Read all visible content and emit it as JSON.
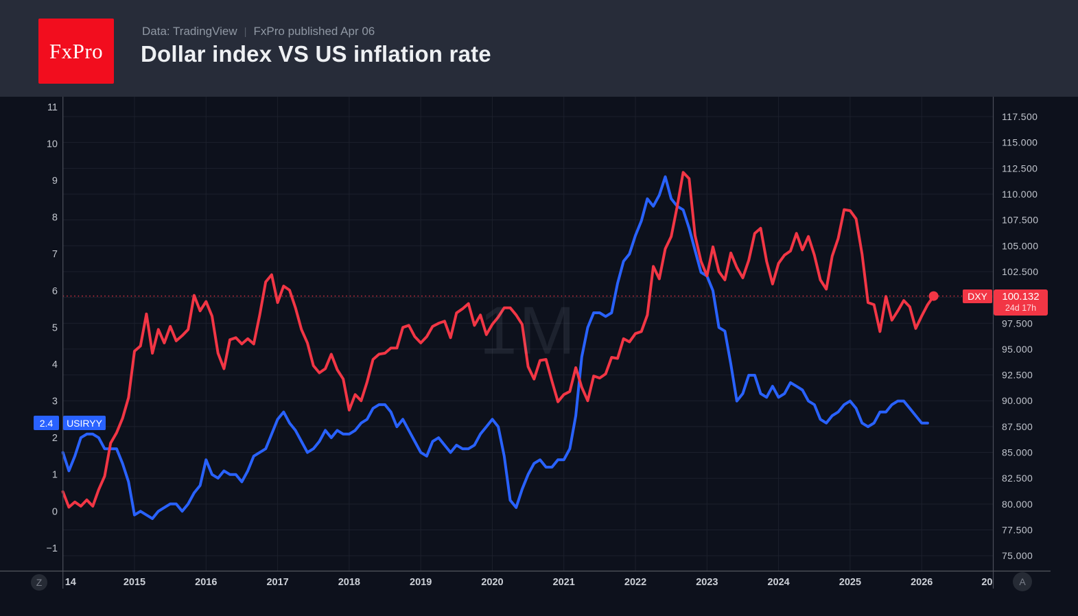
{
  "header": {
    "logo_text": "FxPro",
    "data_source": "Data: TradingView",
    "divider": "|",
    "published": "FxPro published Apr 06",
    "title": "Dollar index VS US inflation rate"
  },
  "chart": {
    "watermark": "1M",
    "left_badge": {
      "value": "2.4",
      "label": "USIRYY",
      "color": "#2962FF"
    },
    "right_badge": {
      "symbol": "DXY",
      "value": "100.132",
      "countdown": "24d 17h",
      "color": "#F23645"
    },
    "buttons": {
      "bottom_left": "Z",
      "bottom_right": "A"
    },
    "colors": {
      "background": "#0D111C",
      "header_background": "#272C39",
      "grid": "#1C202C",
      "axis_border": "#4A4E59",
      "axis_text": "#C2C6CE",
      "year_text": "#CDD1D8",
      "blue_series": "#2962FF",
      "red_series": "#F23645",
      "logo_red": "#F20D1E"
    }
  },
  "chart_data": {
    "type": "line",
    "title": "Dollar index VS US inflation rate",
    "timeframe": "1M",
    "x_start": "2014-01",
    "x_interval": "monthly",
    "grid": true,
    "legend_position": "none",
    "x_ticks": [
      {
        "m": 0,
        "label": "14"
      },
      {
        "m": 12,
        "label": "2015"
      },
      {
        "m": 24,
        "label": "2016"
      },
      {
        "m": 36,
        "label": "2017"
      },
      {
        "m": 48,
        "label": "2018"
      },
      {
        "m": 60,
        "label": "2019"
      },
      {
        "m": 72,
        "label": "2020"
      },
      {
        "m": 84,
        "label": "2021"
      },
      {
        "m": 96,
        "label": "2022"
      },
      {
        "m": 108,
        "label": "2023"
      },
      {
        "m": 120,
        "label": "2024"
      },
      {
        "m": 132,
        "label": "2025"
      },
      {
        "m": 144,
        "label": "2026"
      },
      {
        "m": 156,
        "label": "20"
      }
    ],
    "left_axis": {
      "name": "USIRYY",
      "tick_values": [
        11,
        10,
        9,
        8,
        7,
        6,
        5,
        4,
        3,
        2,
        1,
        0,
        -1
      ],
      "tick_labels": [
        "11",
        "10",
        "9",
        "8",
        "7",
        "6",
        "5",
        "4",
        "3",
        "2",
        "1",
        "0",
        "−1"
      ],
      "range": [
        -1.63,
        11.28
      ]
    },
    "right_axis": {
      "name": "DXY",
      "tick_values": [
        117.5,
        115.0,
        112.5,
        110.0,
        107.5,
        105.0,
        102.5,
        97.5,
        95.0,
        92.5,
        90.0,
        87.5,
        85.0,
        82.5,
        80.0,
        77.5,
        75.0
      ],
      "tick_labels": [
        "117.500",
        "115.000",
        "112.500",
        "110.000",
        "107.500",
        "105.000",
        "102.500",
        "97.500",
        "95.000",
        "92.500",
        "90.000",
        "87.500",
        "85.000",
        "82.500",
        "80.000",
        "77.500",
        "75.000"
      ],
      "range": [
        73.5,
        119.43
      ]
    },
    "current_price_line": {
      "series": "DXY",
      "value": 100.132,
      "style": "dotted"
    },
    "series": [
      {
        "name": "USIRYY",
        "description": "US Inflation Rate YoY (%)",
        "axis": "left",
        "color": "#2962FF",
        "last_value": 2.4,
        "values": [
          1.6,
          1.1,
          1.5,
          2.0,
          2.1,
          2.1,
          2.0,
          1.7,
          1.7,
          1.7,
          1.3,
          0.8,
          -0.1,
          0.0,
          -0.1,
          -0.2,
          0.0,
          0.1,
          0.2,
          0.2,
          0.0,
          0.2,
          0.5,
          0.7,
          1.4,
          1.0,
          0.9,
          1.1,
          1.0,
          1.0,
          0.8,
          1.1,
          1.5,
          1.6,
          1.7,
          2.1,
          2.5,
          2.7,
          2.4,
          2.2,
          1.9,
          1.6,
          1.7,
          1.9,
          2.2,
          2.0,
          2.2,
          2.1,
          2.1,
          2.2,
          2.4,
          2.5,
          2.8,
          2.9,
          2.9,
          2.7,
          2.3,
          2.5,
          2.2,
          1.9,
          1.6,
          1.5,
          1.9,
          2.0,
          1.8,
          1.6,
          1.8,
          1.7,
          1.7,
          1.8,
          2.1,
          2.3,
          2.5,
          2.3,
          1.5,
          0.3,
          0.1,
          0.6,
          1.0,
          1.3,
          1.4,
          1.2,
          1.2,
          1.4,
          1.4,
          1.7,
          2.6,
          4.2,
          5.0,
          5.4,
          5.4,
          5.3,
          5.4,
          6.2,
          6.8,
          7.0,
          7.5,
          7.9,
          8.5,
          8.3,
          8.6,
          9.1,
          8.5,
          8.3,
          8.2,
          7.7,
          7.1,
          6.5,
          6.4,
          6.0,
          5.0,
          4.9,
          4.0,
          3.0,
          3.2,
          3.7,
          3.7,
          3.2,
          3.1,
          3.4,
          3.1,
          3.2,
          3.5,
          3.4,
          3.3,
          3.0,
          2.9,
          2.5,
          2.4,
          2.6,
          2.7,
          2.9,
          3.0,
          2.8,
          2.4,
          2.3,
          2.4,
          2.7,
          2.7,
          2.9,
          3.0,
          3.0,
          2.8,
          2.6,
          2.4,
          2.4
        ]
      },
      {
        "name": "DXY",
        "description": "US Dollar Index",
        "axis": "right",
        "color": "#F23645",
        "last_value": 100.132,
        "countdown": "24d 17h",
        "values": [
          81.2,
          79.7,
          80.2,
          79.8,
          80.4,
          79.8,
          81.4,
          82.7,
          85.9,
          86.9,
          88.3,
          90.3,
          94.8,
          95.3,
          98.4,
          94.6,
          96.9,
          95.6,
          97.2,
          95.8,
          96.3,
          96.9,
          100.2,
          98.7,
          99.6,
          98.2,
          94.6,
          93.1,
          95.9,
          96.1,
          95.5,
          96.0,
          95.5,
          98.3,
          101.5,
          102.2,
          99.5,
          101.1,
          100.7,
          99.0,
          96.9,
          95.6,
          93.4,
          92.7,
          93.1,
          94.5,
          93.0,
          92.1,
          89.1,
          90.6,
          90.0,
          91.8,
          94.0,
          94.5,
          94.6,
          95.1,
          95.1,
          97.1,
          97.3,
          96.2,
          95.6,
          96.2,
          97.2,
          97.5,
          97.7,
          96.1,
          98.5,
          98.9,
          99.4,
          97.3,
          98.3,
          96.4,
          97.4,
          98.1,
          99.0,
          99.0,
          98.3,
          97.4,
          93.3,
          92.1,
          93.9,
          94.0,
          91.9,
          89.9,
          90.6,
          90.9,
          93.2,
          91.3,
          90.0,
          92.4,
          92.2,
          92.6,
          94.2,
          94.1,
          96.0,
          95.7,
          96.5,
          96.7,
          98.3,
          103.0,
          101.8,
          104.7,
          105.9,
          108.8,
          112.1,
          111.5,
          106.0,
          103.5,
          102.1,
          104.9,
          102.5,
          101.7,
          104.3,
          102.9,
          101.9,
          103.6,
          106.2,
          106.7,
          103.5,
          101.3,
          103.3,
          104.1,
          104.5,
          106.2,
          104.6,
          105.9,
          104.1,
          101.7,
          100.8,
          104.0,
          105.7,
          108.5,
          108.4,
          107.6,
          104.2,
          99.5,
          99.3,
          96.7,
          100.1,
          97.8,
          98.7,
          99.7,
          99.1,
          97.0,
          98.2,
          99.3,
          100.132
        ]
      }
    ]
  }
}
